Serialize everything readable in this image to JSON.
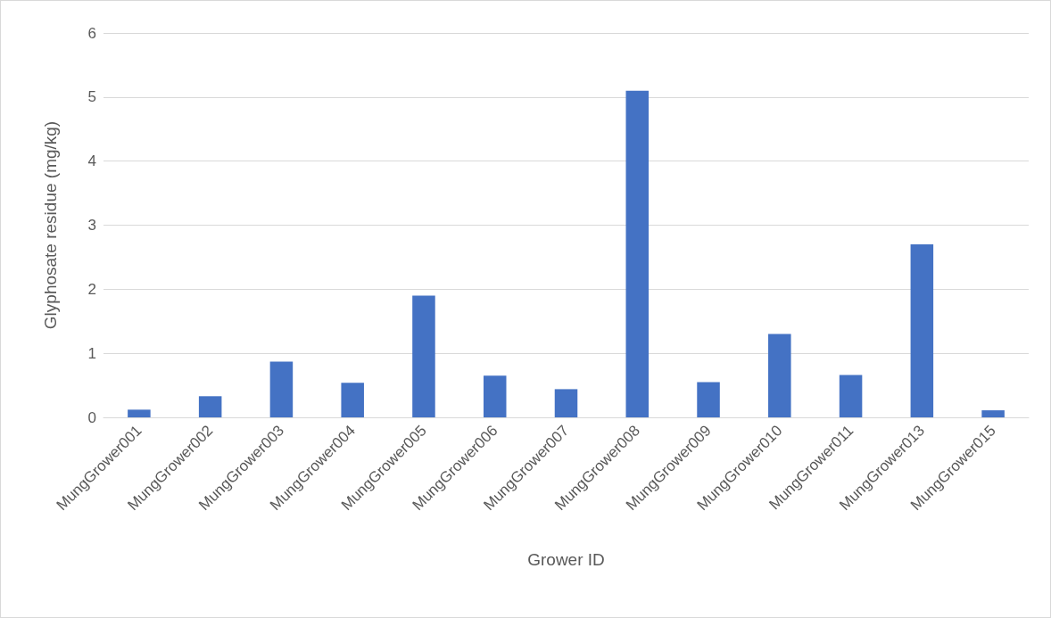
{
  "chart_data": {
    "type": "bar",
    "xlabel": "Grower ID",
    "ylabel": "Glyphosate residue (mg/kg)",
    "categories": [
      "MungGrower001",
      "MungGrower002",
      "MungGrower003",
      "MungGrower004",
      "MungGrower005",
      "MungGrower006",
      "MungGrower007",
      "MungGrower008",
      "MungGrower009",
      "MungGrower010",
      "MungGrower011",
      "MungGrower013",
      "MungGrower015"
    ],
    "values": [
      0.12,
      0.33,
      0.87,
      0.54,
      1.9,
      0.65,
      0.44,
      5.1,
      0.55,
      1.3,
      0.66,
      2.7,
      0.11
    ],
    "color": "#4472c4",
    "ylim": [
      0,
      6
    ],
    "yticks": [
      0,
      1,
      2,
      3,
      4,
      5,
      6
    ],
    "grid": "y"
  }
}
